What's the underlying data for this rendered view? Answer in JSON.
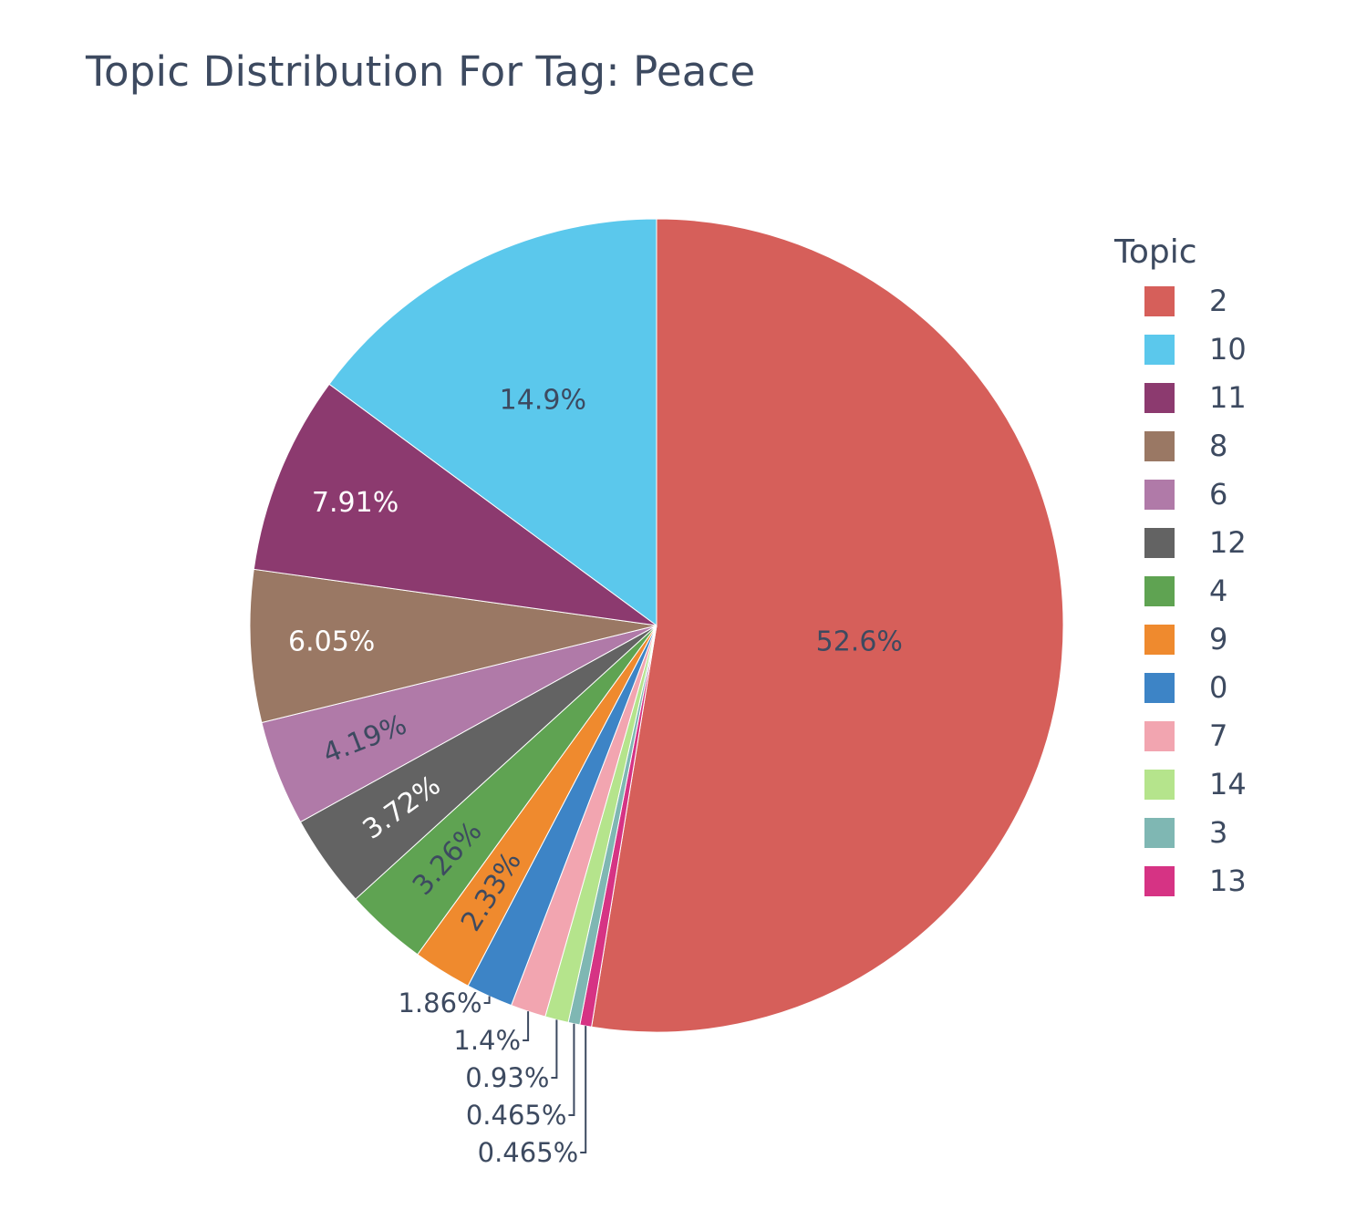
{
  "chart_data": {
    "type": "pie",
    "title": "Topic Distribution For Tag: Peace",
    "legend_title": "Topic",
    "legend_position": "right",
    "slices": [
      {
        "label": "2",
        "value": 52.6,
        "text": "52.6%",
        "color": "#d65f5a",
        "text_color": "#3d4a60",
        "placement": "inside"
      },
      {
        "label": "13",
        "value": 0.465,
        "text": "0.465%",
        "color": "#d63384",
        "text_color": "#3d4a60",
        "placement": "outside"
      },
      {
        "label": "3",
        "value": 0.465,
        "text": "0.465%",
        "color": "#7fb7b3",
        "text_color": "#3d4a60",
        "placement": "outside"
      },
      {
        "label": "14",
        "value": 0.93,
        "text": "0.93%",
        "color": "#b5e48c",
        "text_color": "#3d4a60",
        "placement": "outside"
      },
      {
        "label": "7",
        "value": 1.4,
        "text": "1.4%",
        "color": "#f2a5b0",
        "text_color": "#3d4a60",
        "placement": "outside"
      },
      {
        "label": "0",
        "value": 1.86,
        "text": "1.86%",
        "color": "#3d84c6",
        "text_color": "#3d4a60",
        "placement": "outside"
      },
      {
        "label": "9",
        "value": 2.33,
        "text": "2.33%",
        "color": "#ef8a2e",
        "text_color": "#3d4a60",
        "placement": "inside"
      },
      {
        "label": "4",
        "value": 3.26,
        "text": "3.26%",
        "color": "#5fa352",
        "text_color": "#3d4a60",
        "placement": "inside"
      },
      {
        "label": "12",
        "value": 3.72,
        "text": "3.72%",
        "color": "#636363",
        "text_color": "#ffffff",
        "placement": "inside"
      },
      {
        "label": "6",
        "value": 4.19,
        "text": "4.19%",
        "color": "#b07aa8",
        "text_color": "#3d4a60",
        "placement": "inside"
      },
      {
        "label": "8",
        "value": 6.05,
        "text": "6.05%",
        "color": "#9a7864",
        "text_color": "#ffffff",
        "placement": "inside"
      },
      {
        "label": "11",
        "value": 7.91,
        "text": "7.91%",
        "color": "#8c3a6f",
        "text_color": "#ffffff",
        "placement": "inside"
      },
      {
        "label": "10",
        "value": 14.9,
        "text": "14.9%",
        "color": "#5bc8ec",
        "text_color": "#3d4a60",
        "placement": "inside"
      }
    ],
    "legend_order": [
      "2",
      "10",
      "11",
      "8",
      "6",
      "12",
      "4",
      "9",
      "0",
      "7",
      "14",
      "3",
      "13"
    ]
  }
}
